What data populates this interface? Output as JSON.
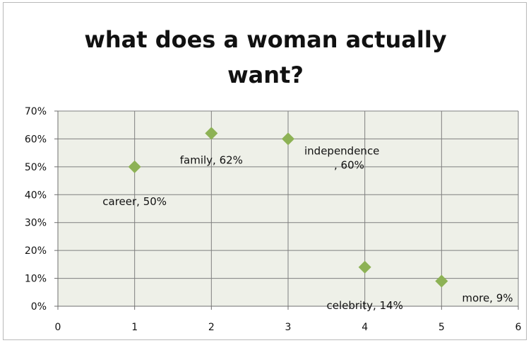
{
  "chart_data": {
    "type": "scatter",
    "title_lines": [
      "what does a woman actually",
      "want?"
    ],
    "xlabel": "",
    "ylabel": "",
    "xlim": [
      0,
      6
    ],
    "ylim": [
      0,
      0.7
    ],
    "x_ticks": [
      "0",
      "1",
      "2",
      "3",
      "4",
      "5",
      "6"
    ],
    "y_ticks": [
      "0%",
      "10%",
      "20%",
      "30%",
      "40%",
      "50%",
      "60%",
      "70%"
    ],
    "grid": true,
    "legend": "none",
    "points": [
      {
        "x": 1,
        "y": 0.5,
        "label": [
          "career, 50%"
        ]
      },
      {
        "x": 2,
        "y": 0.62,
        "label": [
          "family, 62%"
        ]
      },
      {
        "x": 3,
        "y": 0.6,
        "label": [
          "independence",
          ", 60%"
        ]
      },
      {
        "x": 4,
        "y": 0.14,
        "label": [
          "celebrity, 14%"
        ]
      },
      {
        "x": 5,
        "y": 0.09,
        "label": [
          "more, 9%"
        ]
      }
    ],
    "colors": {
      "plot_area": "#eef0e8",
      "grid": "#7f7f7f",
      "marker": "#8db255"
    }
  }
}
